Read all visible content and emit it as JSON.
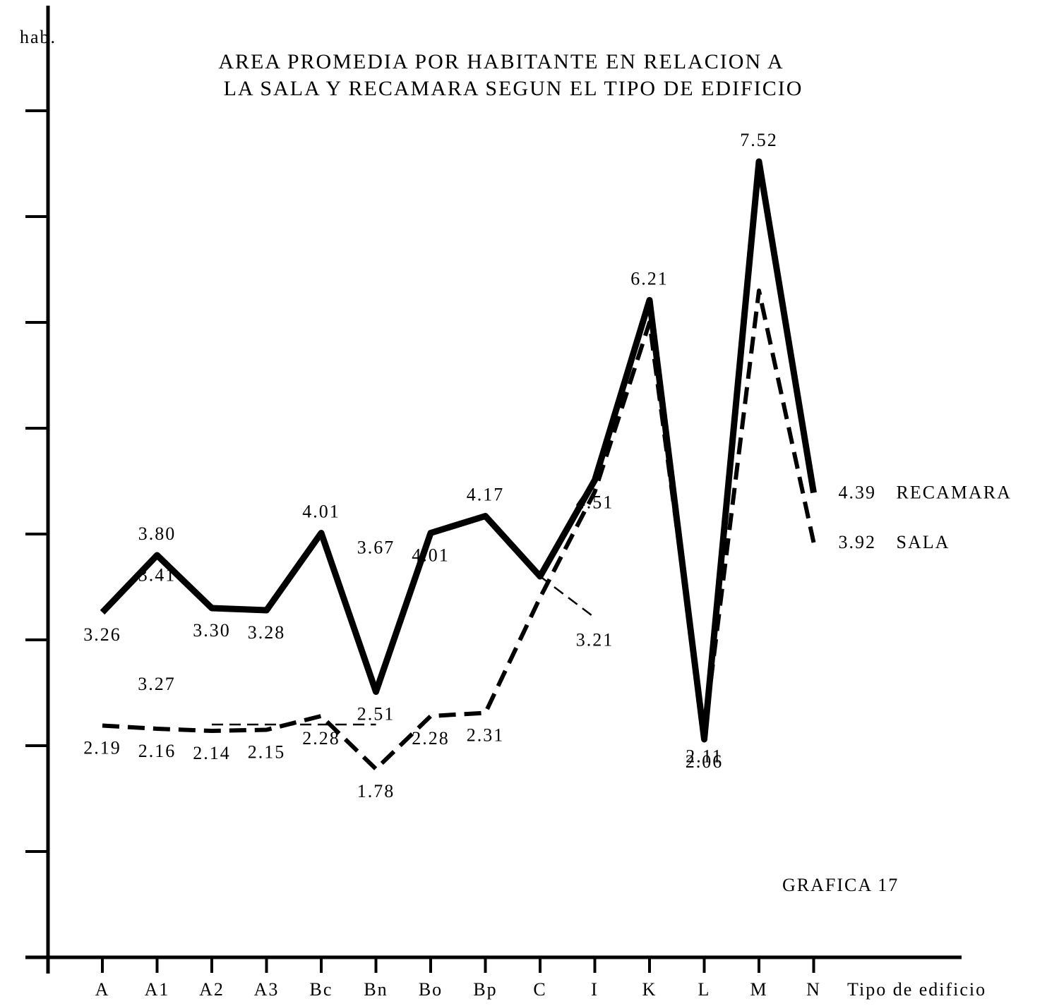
{
  "chart_data": {
    "type": "line",
    "title_lines": [
      "AREA PROMEDIA POR HABITANTE EN RELACION A",
      "LA SALA Y RECAMARA SEGUN EL TIPO DE EDIFICIO"
    ],
    "y_label": "hab.",
    "x_label": "Tipo de edificio",
    "annotations": [
      "3.27",
      "GRAFICA 17"
    ],
    "categories": [
      "A",
      "A1",
      "A2",
      "A3",
      "Bc",
      "Bn",
      "Bo",
      "Bp",
      "C",
      "I",
      "K",
      "L",
      "M",
      "N"
    ],
    "ylim": [
      0,
      9
    ],
    "yticks": [
      1,
      2,
      3,
      4,
      5,
      6,
      7,
      8
    ],
    "series": [
      {
        "name": "RECAMARA",
        "color": "#000000",
        "style": "solid",
        "values": [
          3.26,
          3.8,
          3.3,
          3.28,
          4.01,
          2.51,
          4.01,
          4.17,
          3.6,
          4.51,
          6.21,
          2.06,
          7.52,
          4.39
        ],
        "value_labels": [
          "3.26",
          "3.80",
          "3.30",
          "3.28",
          "4.01",
          "2.51",
          "4.01",
          "4.17",
          null,
          "4.51",
          "6.21",
          "2.06",
          "7.52",
          "4.39"
        ]
      },
      {
        "name": "SALA",
        "color": "#000000",
        "style": "dashed",
        "values": [
          2.19,
          2.16,
          2.14,
          2.15,
          2.28,
          1.78,
          2.28,
          2.31,
          3.4,
          4.4,
          6.0,
          2.11,
          6.3,
          3.92
        ],
        "value_labels": [
          "2.19",
          "2.16",
          "2.14",
          "2.15",
          "2.28",
          "1.78",
          "2.28",
          "2.31",
          null,
          null,
          null,
          "2.11",
          null,
          "3.92"
        ]
      },
      {
        "color": "#000000",
        "style": "thin",
        "values": [
          null,
          3.41,
          null,
          null,
          null,
          3.67,
          null,
          null,
          3.6,
          3.21,
          null,
          null,
          null,
          null
        ],
        "value_labels": [
          null,
          "3.41",
          null,
          null,
          null,
          "3.67",
          null,
          null,
          null,
          "3.21",
          null,
          null,
          null,
          null
        ]
      },
      {
        "color": "#000000",
        "style": "thin",
        "values": [
          null,
          null,
          2.2,
          2.2,
          2.2,
          2.2,
          null,
          null,
          3.6,
          null,
          null,
          null,
          null,
          null
        ]
      }
    ]
  }
}
